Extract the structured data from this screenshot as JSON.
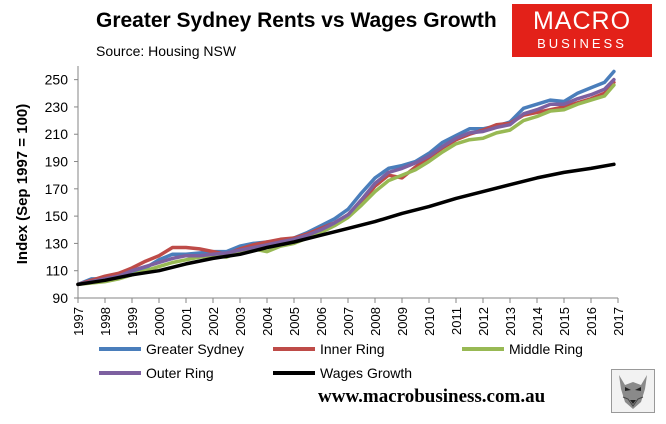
{
  "chart_data": {
    "type": "line",
    "title": "Greater Sydney Rents vs Wages Growth",
    "subtitle": "Source: Housing NSW",
    "xlabel": "",
    "ylabel": "Index (Sep 1997 = 100)",
    "xlim": [
      1997,
      2017
    ],
    "ylim": [
      90,
      260
    ],
    "xticks": [
      1997,
      1998,
      1999,
      2000,
      2001,
      2002,
      2003,
      2004,
      2005,
      2006,
      2007,
      2008,
      2009,
      2010,
      2011,
      2012,
      2013,
      2014,
      2015,
      2016,
      2017
    ],
    "yticks": [
      90,
      110,
      130,
      150,
      170,
      190,
      210,
      230,
      250
    ],
    "grid": false,
    "legend_position": "bottom",
    "series": [
      {
        "name": "Greater Sydney",
        "color": "#4a7ebb",
        "points": [
          [
            1997.0,
            100
          ],
          [
            1997.5,
            104
          ],
          [
            1998.0,
            104
          ],
          [
            1998.5,
            106
          ],
          [
            1999.0,
            109
          ],
          [
            1999.5,
            112
          ],
          [
            2000.0,
            118
          ],
          [
            2000.5,
            122
          ],
          [
            2001.0,
            122
          ],
          [
            2001.5,
            123
          ],
          [
            2002.0,
            124
          ],
          [
            2002.5,
            124
          ],
          [
            2003.0,
            128
          ],
          [
            2003.5,
            130
          ],
          [
            2004.0,
            131
          ],
          [
            2004.5,
            132
          ],
          [
            2005.0,
            134
          ],
          [
            2005.5,
            138
          ],
          [
            2006.0,
            143
          ],
          [
            2006.5,
            148
          ],
          [
            2007.0,
            155
          ],
          [
            2007.5,
            167
          ],
          [
            2008.0,
            178
          ],
          [
            2008.5,
            185
          ],
          [
            2009.0,
            187
          ],
          [
            2009.5,
            190
          ],
          [
            2010.0,
            196
          ],
          [
            2010.5,
            204
          ],
          [
            2011.0,
            209
          ],
          [
            2011.5,
            214
          ],
          [
            2012.0,
            214
          ],
          [
            2012.5,
            216
          ],
          [
            2013.0,
            219
          ],
          [
            2013.5,
            229
          ],
          [
            2014.0,
            232
          ],
          [
            2014.5,
            235
          ],
          [
            2015.0,
            234
          ],
          [
            2015.5,
            240
          ],
          [
            2016.0,
            244
          ],
          [
            2016.5,
            248
          ],
          [
            2016.85,
            256
          ]
        ]
      },
      {
        "name": "Inner Ring",
        "color": "#be4b48",
        "points": [
          [
            1997.0,
            100
          ],
          [
            1997.5,
            103
          ],
          [
            1998.0,
            106
          ],
          [
            1998.5,
            108
          ],
          [
            1999.0,
            112
          ],
          [
            1999.5,
            117
          ],
          [
            2000.0,
            121
          ],
          [
            2000.5,
            127
          ],
          [
            2001.0,
            127
          ],
          [
            2001.5,
            126
          ],
          [
            2002.0,
            124
          ],
          [
            2002.5,
            122
          ],
          [
            2003.0,
            126
          ],
          [
            2003.5,
            129
          ],
          [
            2004.0,
            131
          ],
          [
            2004.5,
            133
          ],
          [
            2005.0,
            134
          ],
          [
            2005.5,
            137
          ],
          [
            2006.0,
            141
          ],
          [
            2006.5,
            145
          ],
          [
            2007.0,
            151
          ],
          [
            2007.5,
            160
          ],
          [
            2008.0,
            172
          ],
          [
            2008.5,
            180
          ],
          [
            2009.0,
            178
          ],
          [
            2009.5,
            186
          ],
          [
            2010.0,
            193
          ],
          [
            2010.5,
            200
          ],
          [
            2011.0,
            206
          ],
          [
            2011.5,
            210
          ],
          [
            2012.0,
            213
          ],
          [
            2012.5,
            217
          ],
          [
            2013.0,
            218
          ],
          [
            2013.5,
            224
          ],
          [
            2014.0,
            226
          ],
          [
            2014.5,
            228
          ],
          [
            2015.0,
            230
          ],
          [
            2015.5,
            233
          ],
          [
            2016.0,
            236
          ],
          [
            2016.5,
            240
          ],
          [
            2016.85,
            248
          ]
        ]
      },
      {
        "name": "Middle Ring",
        "color": "#98b954",
        "points": [
          [
            1997.0,
            100
          ],
          [
            1997.5,
            101
          ],
          [
            1998.0,
            102
          ],
          [
            1998.5,
            104
          ],
          [
            1999.0,
            107
          ],
          [
            1999.5,
            110
          ],
          [
            2000.0,
            113
          ],
          [
            2000.5,
            116
          ],
          [
            2001.0,
            118
          ],
          [
            2001.5,
            120
          ],
          [
            2002.0,
            121
          ],
          [
            2002.5,
            120
          ],
          [
            2003.0,
            124
          ],
          [
            2003.5,
            126
          ],
          [
            2004.0,
            124
          ],
          [
            2004.5,
            128
          ],
          [
            2005.0,
            130
          ],
          [
            2005.5,
            134
          ],
          [
            2006.0,
            138
          ],
          [
            2006.5,
            143
          ],
          [
            2007.0,
            149
          ],
          [
            2007.5,
            158
          ],
          [
            2008.0,
            168
          ],
          [
            2008.5,
            176
          ],
          [
            2009.0,
            180
          ],
          [
            2009.5,
            184
          ],
          [
            2010.0,
            190
          ],
          [
            2010.5,
            197
          ],
          [
            2011.0,
            203
          ],
          [
            2011.5,
            206
          ],
          [
            2012.0,
            207
          ],
          [
            2012.5,
            211
          ],
          [
            2013.0,
            213
          ],
          [
            2013.5,
            220
          ],
          [
            2014.0,
            223
          ],
          [
            2014.5,
            227
          ],
          [
            2015.0,
            228
          ],
          [
            2015.5,
            232
          ],
          [
            2016.0,
            235
          ],
          [
            2016.5,
            238
          ],
          [
            2016.85,
            246
          ]
        ]
      },
      {
        "name": "Outer Ring",
        "color": "#7d60a0",
        "points": [
          [
            1997.0,
            100
          ],
          [
            1997.5,
            102
          ],
          [
            1998.0,
            104
          ],
          [
            1998.5,
            106
          ],
          [
            1999.0,
            110
          ],
          [
            1999.5,
            113
          ],
          [
            2000.0,
            116
          ],
          [
            2000.5,
            119
          ],
          [
            2001.0,
            121
          ],
          [
            2001.5,
            121
          ],
          [
            2002.0,
            122
          ],
          [
            2002.5,
            123
          ],
          [
            2003.0,
            125
          ],
          [
            2003.5,
            127
          ],
          [
            2004.0,
            129
          ],
          [
            2004.5,
            131
          ],
          [
            2005.0,
            133
          ],
          [
            2005.5,
            136
          ],
          [
            2006.0,
            140
          ],
          [
            2006.5,
            145
          ],
          [
            2007.0,
            151
          ],
          [
            2007.5,
            162
          ],
          [
            2008.0,
            174
          ],
          [
            2008.5,
            182
          ],
          [
            2009.0,
            185
          ],
          [
            2009.5,
            189
          ],
          [
            2010.0,
            194
          ],
          [
            2010.5,
            201
          ],
          [
            2011.0,
            207
          ],
          [
            2011.5,
            211
          ],
          [
            2012.0,
            212
          ],
          [
            2012.5,
            215
          ],
          [
            2013.0,
            217
          ],
          [
            2013.5,
            225
          ],
          [
            2014.0,
            228
          ],
          [
            2014.5,
            232
          ],
          [
            2015.0,
            232
          ],
          [
            2015.5,
            236
          ],
          [
            2016.0,
            239
          ],
          [
            2016.5,
            243
          ],
          [
            2016.85,
            250
          ]
        ]
      },
      {
        "name": "Wages Growth",
        "color": "#000000",
        "points": [
          [
            1997.0,
            100
          ],
          [
            1998.0,
            103
          ],
          [
            1999.0,
            107
          ],
          [
            2000.0,
            110
          ],
          [
            2001.0,
            115
          ],
          [
            2002.0,
            119
          ],
          [
            2003.0,
            122
          ],
          [
            2004.0,
            127
          ],
          [
            2005.0,
            131
          ],
          [
            2006.0,
            136
          ],
          [
            2007.0,
            141
          ],
          [
            2008.0,
            146
          ],
          [
            2009.0,
            152
          ],
          [
            2010.0,
            157
          ],
          [
            2011.0,
            163
          ],
          [
            2012.0,
            168
          ],
          [
            2013.0,
            173
          ],
          [
            2014.0,
            178
          ],
          [
            2015.0,
            182
          ],
          [
            2016.0,
            185
          ],
          [
            2016.85,
            188
          ]
        ]
      }
    ]
  },
  "logo": {
    "top": "MACRO",
    "bottom": "BUSINESS"
  },
  "website": "www.macrobusiness.com.au",
  "wolf_icon": "wolf-icon"
}
